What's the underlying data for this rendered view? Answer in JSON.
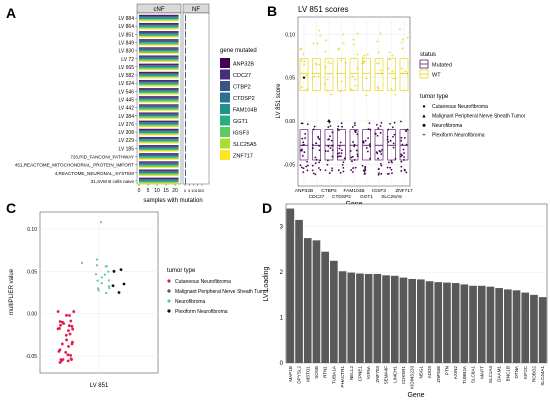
{
  "palette": {
    "genes": [
      "#440154",
      "#472d7b",
      "#3b528b",
      "#2c728e",
      "#21918c",
      "#28ae80",
      "#5ec962",
      "#addc30",
      "#fde725"
    ],
    "mutated": "#440154",
    "wt": "#fde725",
    "tumor_colors": [
      "#e6194b",
      "#555555",
      "#66c2a5",
      "#111111"
    ],
    "bar_fill": "#595959",
    "strip_fill": "#d9d9d9",
    "grid": "#ebebeb"
  },
  "panel_labels": [
    "A",
    "B",
    "C",
    "D"
  ],
  "panelA": {
    "facets": [
      "cNF",
      "NF"
    ],
    "row_labels": [
      "LV 884",
      "LV 864",
      "LV 851",
      "LV 849",
      "LV 830",
      "LV 72",
      "LV 665",
      "LV 582",
      "LV 624",
      "LV 546",
      "LV 445",
      "LV 442",
      "LV 384",
      "LV 376",
      "LV 308",
      "LV 229",
      "LV 185",
      "720,PID_FANCONI_PATHWAY",
      "451,REACTOME_MITOCHONDRIAL_PROTEIN_IMPORT",
      "4,REACTOME_NEURONAL_SYSTEM",
      "31,SVM B cells naive"
    ],
    "x_ticks": [
      "0",
      "5",
      "10",
      "15",
      "20"
    ],
    "xlabel": "samples with mutation",
    "legend_title": "gene mutated",
    "genes": [
      "ANP32B",
      "CDC27",
      "CTBP2",
      "CTDSP2",
      "FAM104B",
      "GGT1",
      "IGSF3",
      "SLC25A5",
      "ZNF717"
    ]
  },
  "panelB": {
    "title": "LV 851 scores",
    "ylabel": "LV 851 score",
    "xlabel": "Gene",
    "y_ticks": [
      "0.10",
      "0.05",
      "0.00",
      "-0.05"
    ],
    "genes_top": [
      "ANP32B",
      "CTBP2",
      "FAM104B",
      "IGSF3",
      "ZNF717"
    ],
    "genes_bottom": [
      "CDC27",
      "CTDSP2",
      "GGT1",
      "SLC25A5"
    ],
    "status_title": "status",
    "status": [
      "Mutated",
      "WT"
    ],
    "tumor_title": "tumor type",
    "tumor_types": [
      "Cutaneous Neurofibroma",
      "Malignant Peripheral Nerve Sheath Tumor",
      "Neurofibroma",
      "Plexiform Neurofibroma"
    ]
  },
  "panelC": {
    "ylabel": "multiPLIER value",
    "xlabel": "LV 851",
    "y_ticks": [
      "0.10",
      "0.05",
      "0.00",
      "-0.05"
    ],
    "legend_title": "tumor type",
    "tumor_types": [
      "Cutaneous Neurofibroma",
      "Malignant Peripheral Nerve Sheath Tumor",
      "Neurofibroma",
      "Plexiform Neurofibroma"
    ]
  },
  "chart_data": {
    "type": "bar",
    "ylabel": "LV Loading",
    "xlabel": "Gene",
    "ylim": [
      0,
      3.5
    ],
    "y_ticks": [
      "0",
      "1",
      "2",
      "3"
    ],
    "categories": [
      "MAP1B",
      "DPYSL2",
      "MSTO1",
      "SOSB",
      "RTN1",
      "TUBA1A",
      "PHACTR1",
      "NELL2",
      "CPNE1",
      "KIF5A",
      "ZNF703",
      "SEMA4F",
      "LIMCH1",
      "CDK5R1",
      "KIDINS220",
      "NSG1",
      "ADD3",
      "ZNF536",
      "PTN",
      "AXIN2",
      "TUBB2A",
      "SLC8A1",
      "MAPT",
      "SLC1A4",
      "DAAM1",
      "BNC1B",
      "DTNA",
      "KIF2C",
      "ROBO2",
      "SLC44A1"
    ],
    "values": [
      3.4,
      3.15,
      2.75,
      2.7,
      2.45,
      2.25,
      2.02,
      1.99,
      1.97,
      1.96,
      1.96,
      1.93,
      1.92,
      1.88,
      1.85,
      1.84,
      1.8,
      1.78,
      1.77,
      1.76,
      1.73,
      1.7,
      1.7,
      1.68,
      1.65,
      1.62,
      1.6,
      1.55,
      1.5,
      1.45
    ]
  }
}
